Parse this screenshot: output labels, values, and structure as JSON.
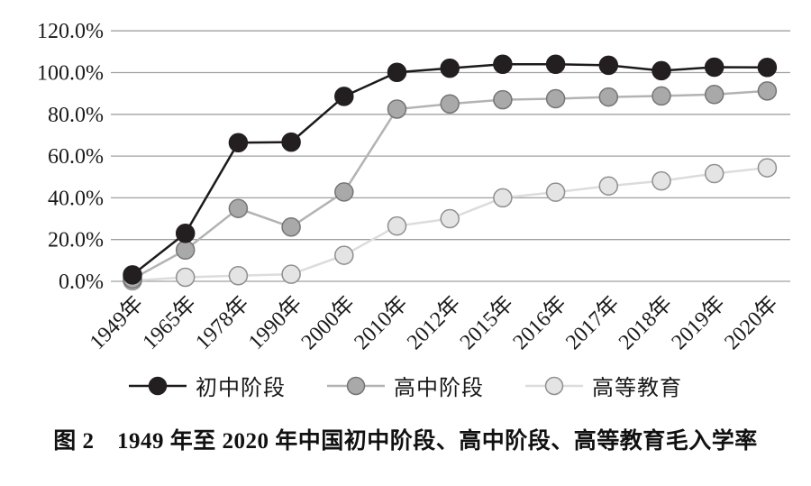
{
  "figure": {
    "caption": "图 2　1949 年至 2020 年中国初中阶段、高中阶段、高等教育毛入学率"
  },
  "chart_data": {
    "type": "line",
    "title": "1949年至2020年中国初中阶段、高中阶段、高等教育毛入学率",
    "categories": [
      "1949年",
      "1965年",
      "1978年",
      "1990年",
      "2000年",
      "2010年",
      "2012年",
      "2015年",
      "2016年",
      "2017年",
      "2018年",
      "2019年",
      "2020年"
    ],
    "series": [
      {
        "name": "初中阶段",
        "values": [
          3.1,
          23.0,
          66.4,
          66.7,
          88.6,
          100.1,
          102.1,
          104.0,
          104.0,
          103.5,
          100.9,
          102.6,
          102.5
        ],
        "line_color": "#1c1a1b",
        "marker_fill": "#231f20",
        "marker_stroke": "#231f20"
      },
      {
        "name": "高中阶段",
        "values": [
          1.1,
          15.0,
          34.9,
          26.0,
          42.8,
          82.5,
          85.0,
          87.0,
          87.5,
          88.3,
          88.8,
          89.5,
          91.2
        ],
        "line_color": "#b3b3b3",
        "marker_fill": "#a9a9a9",
        "marker_stroke": "#757575"
      },
      {
        "name": "高等教育",
        "values": [
          0.26,
          1.95,
          2.7,
          3.4,
          12.5,
          26.5,
          30.0,
          40.0,
          42.7,
          45.7,
          48.1,
          51.6,
          54.4
        ],
        "line_color": "#dcdcdc",
        "marker_fill": "#e4e4e4",
        "marker_stroke": "#8f8f8f"
      }
    ],
    "ylabel": "",
    "xlabel": "",
    "ylim": [
      0,
      120
    ],
    "y_tick_step": 20,
    "y_ticks": [
      "0.0%",
      "20.0%",
      "40.0%",
      "60.0%",
      "80.0%",
      "100.0%",
      "120.0%"
    ],
    "grid": true,
    "gridline_color": "#a0a0a0",
    "legend_position": "bottom"
  }
}
